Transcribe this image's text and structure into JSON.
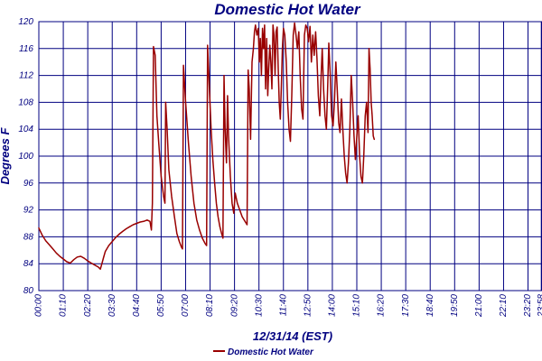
{
  "chart_data": {
    "type": "line",
    "title": "Domestic Hot Water",
    "xlabel": "12/31/14 (EST)",
    "ylabel": "Degrees F",
    "ylim": [
      80,
      120
    ],
    "yticks": [
      80,
      84,
      88,
      92,
      96,
      100,
      104,
      108,
      112,
      116,
      120
    ],
    "xticks": [
      "00:00",
      "01:10",
      "02:20",
      "03:30",
      "04:40",
      "05:50",
      "07:00",
      "08:10",
      "09:20",
      "10:30",
      "11:40",
      "12:50",
      "14:00",
      "15:10",
      "16:20",
      "17:30",
      "18:40",
      "19:50",
      "21:00",
      "22:10",
      "23:20",
      "23:58"
    ],
    "xtick_minutes": [
      0,
      70,
      140,
      210,
      280,
      350,
      420,
      490,
      560,
      630,
      700,
      770,
      840,
      910,
      980,
      1050,
      1120,
      1190,
      1260,
      1330,
      1400,
      1438
    ],
    "xlim_minutes": [
      0,
      1440
    ],
    "grid": true,
    "legend_position": "bottom-left",
    "colors": {
      "series": "#990000",
      "grid": "#000080",
      "text": "#000080"
    },
    "series": [
      {
        "name": "Domestic Hot Water",
        "points": [
          [
            0,
            89.3
          ],
          [
            10,
            88.2
          ],
          [
            20,
            87.4
          ],
          [
            30,
            86.8
          ],
          [
            40,
            86.2
          ],
          [
            50,
            85.6
          ],
          [
            60,
            85.1
          ],
          [
            70,
            84.7
          ],
          [
            80,
            84.3
          ],
          [
            90,
            84.1
          ],
          [
            100,
            84.6
          ],
          [
            110,
            85.0
          ],
          [
            120,
            85.1
          ],
          [
            130,
            84.8
          ],
          [
            140,
            84.4
          ],
          [
            150,
            84.1
          ],
          [
            160,
            83.8
          ],
          [
            170,
            83.5
          ],
          [
            176,
            83.2
          ],
          [
            180,
            83.9
          ],
          [
            185,
            84.9
          ],
          [
            190,
            85.8
          ],
          [
            200,
            86.7
          ],
          [
            210,
            87.3
          ],
          [
            220,
            87.9
          ],
          [
            230,
            88.4
          ],
          [
            240,
            88.8
          ],
          [
            250,
            89.2
          ],
          [
            260,
            89.5
          ],
          [
            270,
            89.8
          ],
          [
            280,
            90.0
          ],
          [
            290,
            90.2
          ],
          [
            300,
            90.3
          ],
          [
            310,
            90.5
          ],
          [
            318,
            90.3
          ],
          [
            322,
            89.0
          ],
          [
            325,
            93.0
          ],
          [
            328,
            116.3
          ],
          [
            333,
            115.0
          ],
          [
            338,
            106.0
          ],
          [
            343,
            102.0
          ],
          [
            350,
            97.0
          ],
          [
            357,
            94.0
          ],
          [
            361,
            93.0
          ],
          [
            363,
            108.0
          ],
          [
            367,
            104.0
          ],
          [
            372,
            98.0
          ],
          [
            380,
            94.0
          ],
          [
            388,
            91.0
          ],
          [
            395,
            88.5
          ],
          [
            402,
            87.3
          ],
          [
            408,
            86.5
          ],
          [
            411,
            86.2
          ],
          [
            414,
            113.5
          ],
          [
            420,
            108.0
          ],
          [
            428,
            102.0
          ],
          [
            436,
            97.0
          ],
          [
            444,
            93.0
          ],
          [
            452,
            90.5
          ],
          [
            460,
            89.0
          ],
          [
            468,
            87.8
          ],
          [
            476,
            87.0
          ],
          [
            480,
            86.7
          ],
          [
            483,
            116.5
          ],
          [
            488,
            110.0
          ],
          [
            493,
            104.0
          ],
          [
            498,
            99.5
          ],
          [
            503,
            96.0
          ],
          [
            508,
            93.0
          ],
          [
            513,
            91.0
          ],
          [
            518,
            89.5
          ],
          [
            523,
            88.5
          ],
          [
            527,
            87.8
          ],
          [
            530,
            112.0
          ],
          [
            533,
            104.0
          ],
          [
            537,
            99.0
          ],
          [
            540,
            109.0
          ],
          [
            543,
            103.0
          ],
          [
            548,
            97.0
          ],
          [
            553,
            93.0
          ],
          [
            558,
            91.5
          ],
          [
            562,
            94.5
          ],
          [
            568,
            93.0
          ],
          [
            575,
            92.0
          ],
          [
            582,
            91.0
          ],
          [
            590,
            90.3
          ],
          [
            596,
            89.8
          ],
          [
            599,
            112.8
          ],
          [
            602,
            110.0
          ],
          [
            606,
            102.5
          ],
          [
            610,
            114.0
          ],
          [
            614,
            116.0
          ],
          [
            617,
            118.5
          ],
          [
            620,
            119.5
          ],
          [
            624,
            118.0
          ],
          [
            628,
            119.0
          ],
          [
            631,
            114.0
          ],
          [
            634,
            117.5
          ],
          [
            637,
            112.0
          ],
          [
            640,
            119.0
          ],
          [
            643,
            116.0
          ],
          [
            646,
            119.5
          ],
          [
            649,
            110.0
          ],
          [
            652,
            117.5
          ],
          [
            655,
            109.0
          ],
          [
            658,
            113.0
          ],
          [
            661,
            116.5
          ],
          [
            664,
            114.0
          ],
          [
            667,
            110.0
          ],
          [
            670,
            119.5
          ],
          [
            673,
            118.0
          ],
          [
            676,
            112.0
          ],
          [
            679,
            118.5
          ],
          [
            682,
            119.2
          ],
          [
            685,
            113.0
          ],
          [
            688,
            108.0
          ],
          [
            691,
            105.5
          ],
          [
            694,
            110.0
          ],
          [
            697,
            116.0
          ],
          [
            700,
            119.0
          ],
          [
            704,
            118.0
          ],
          [
            708,
            114.0
          ],
          [
            712,
            108.0
          ],
          [
            716,
            104.0
          ],
          [
            720,
            102.2
          ],
          [
            724,
            109.0
          ],
          [
            728,
            118.0
          ],
          [
            732,
            119.8
          ],
          [
            736,
            118.0
          ],
          [
            740,
            116.0
          ],
          [
            744,
            118.5
          ],
          [
            748,
            112.0
          ],
          [
            752,
            107.0
          ],
          [
            756,
            105.5
          ],
          [
            760,
            118.0
          ],
          [
            764,
            119.5
          ],
          [
            768,
            119.0
          ],
          [
            772,
            117.0
          ],
          [
            776,
            119.3
          ],
          [
            780,
            114.0
          ],
          [
            784,
            118.0
          ],
          [
            788,
            115.0
          ],
          [
            792,
            118.5
          ],
          [
            796,
            114.5
          ],
          [
            800,
            109.0
          ],
          [
            804,
            106.0
          ],
          [
            808,
            112.0
          ],
          [
            811,
            116.0
          ],
          [
            815,
            110.0
          ],
          [
            819,
            106.0
          ],
          [
            823,
            104.0
          ],
          [
            827,
            111.0
          ],
          [
            830,
            116.8
          ],
          [
            834,
            112.0
          ],
          [
            838,
            106.0
          ],
          [
            842,
            104.5
          ],
          [
            846,
            108.0
          ],
          [
            850,
            114.0
          ],
          [
            854,
            110.0
          ],
          [
            858,
            105.0
          ],
          [
            862,
            103.5
          ],
          [
            866,
            108.5
          ],
          [
            870,
            104.0
          ],
          [
            874,
            100.0
          ],
          [
            878,
            97.5
          ],
          [
            882,
            96.0
          ],
          [
            886,
            99.0
          ],
          [
            890,
            104.0
          ],
          [
            894,
            112.0
          ],
          [
            898,
            108.0
          ],
          [
            902,
            103.0
          ],
          [
            906,
            99.5
          ],
          [
            910,
            103.0
          ],
          [
            914,
            106.0
          ],
          [
            918,
            100.0
          ],
          [
            922,
            97.0
          ],
          [
            926,
            96.0
          ],
          [
            930,
            100.0
          ],
          [
            934,
            106.0
          ],
          [
            938,
            108.0
          ],
          [
            942,
            103.5
          ],
          [
            945,
            116.0
          ],
          [
            948,
            113.0
          ],
          [
            951,
            108.0
          ],
          [
            954,
            106.0
          ],
          [
            957,
            103.0
          ],
          [
            960,
            102.5
          ]
        ]
      }
    ]
  }
}
